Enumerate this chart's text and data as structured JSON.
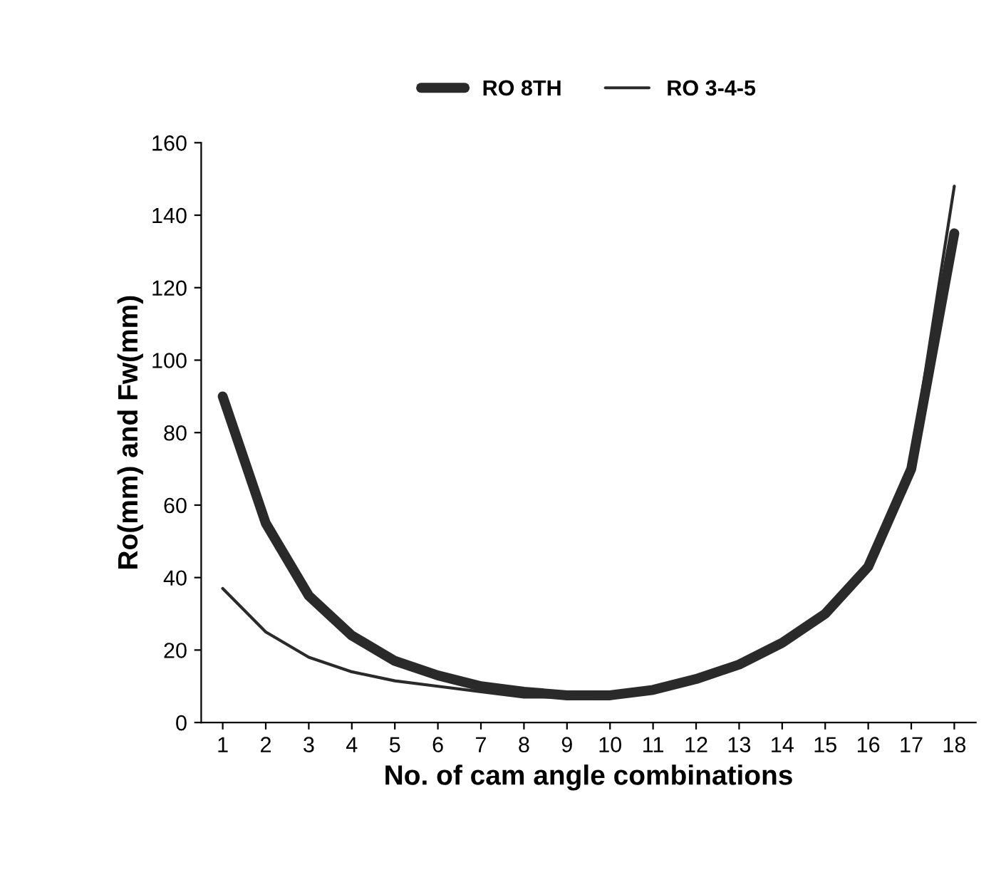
{
  "chart_data": {
    "type": "line",
    "xlabel": "No. of cam angle combinations",
    "ylabel": "Ro(mm) and Fw(mm)",
    "categories": [
      "1",
      "2",
      "3",
      "4",
      "5",
      "6",
      "7",
      "8",
      "9",
      "10",
      "11",
      "12",
      "13",
      "14",
      "15",
      "16",
      "17",
      "18"
    ],
    "series": [
      {
        "name": "RO 8TH",
        "color": "#2a2a2a",
        "values": [
          90,
          55,
          35,
          24,
          17,
          13,
          10,
          8.5,
          7.5,
          7.5,
          9,
          12,
          16,
          22,
          30,
          43,
          70,
          135
        ]
      },
      {
        "name": "RO 3-4-5",
        "color": "#2a2a2a",
        "values": [
          37,
          25,
          18,
          14,
          11.5,
          10,
          8.5,
          7,
          7,
          7.5,
          9,
          12,
          16,
          22,
          30,
          42,
          72,
          148
        ]
      }
    ],
    "ylim": [
      0,
      160
    ],
    "yticks": [
      0,
      20,
      40,
      60,
      80,
      100,
      120,
      140,
      160
    ],
    "grid": false,
    "legend": "top",
    "marker": "none",
    "line_style": "solid"
  }
}
